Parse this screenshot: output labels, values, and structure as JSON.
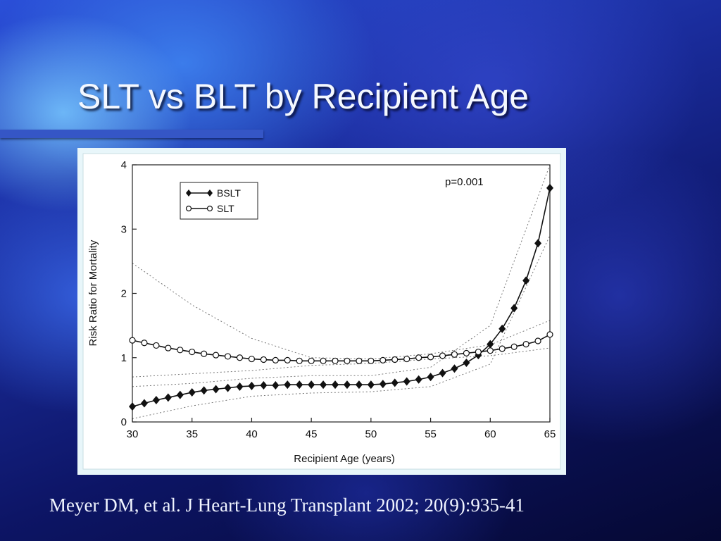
{
  "slide": {
    "title": "SLT vs BLT by Recipient Age",
    "citation": "Meyer DM, et al. J Heart-Lung Transplant 2002; 20(9):935-41"
  },
  "colors": {
    "title": "#f4f8ff",
    "rule": "#3556c6",
    "frame": "#e8f6fa"
  },
  "chart_data": {
    "type": "line",
    "title": "",
    "xlabel": "Recipient Age (years)",
    "ylabel": "Risk Ratio for Mortality",
    "xlim": [
      30,
      65
    ],
    "ylim": [
      0,
      4
    ],
    "xticks": [
      30,
      35,
      40,
      45,
      50,
      55,
      60,
      65
    ],
    "yticks": [
      0,
      1,
      2,
      3,
      4
    ],
    "annotation": "p=0.001",
    "legend": {
      "placement": "top-left"
    },
    "grid": false,
    "series": [
      {
        "name": "BSLT",
        "marker": "filled-diamond",
        "x": [
          30,
          31,
          32,
          33,
          34,
          35,
          36,
          37,
          38,
          39,
          40,
          41,
          42,
          43,
          44,
          45,
          46,
          47,
          48,
          49,
          50,
          51,
          52,
          53,
          54,
          55,
          56,
          57,
          58,
          59,
          60,
          61,
          62,
          63,
          64,
          65
        ],
        "values": [
          0.24,
          0.29,
          0.34,
          0.38,
          0.42,
          0.46,
          0.49,
          0.51,
          0.53,
          0.55,
          0.56,
          0.57,
          0.57,
          0.58,
          0.58,
          0.58,
          0.58,
          0.58,
          0.58,
          0.58,
          0.58,
          0.59,
          0.61,
          0.63,
          0.66,
          0.7,
          0.76,
          0.83,
          0.92,
          1.04,
          1.21,
          1.45,
          1.77,
          2.2,
          2.78,
          3.64
        ]
      },
      {
        "name": "SLT",
        "marker": "open-circle",
        "x": [
          30,
          31,
          32,
          33,
          34,
          35,
          36,
          37,
          38,
          39,
          40,
          41,
          42,
          43,
          44,
          45,
          46,
          47,
          48,
          49,
          50,
          51,
          52,
          53,
          54,
          55,
          56,
          57,
          58,
          59,
          60,
          61,
          62,
          63,
          64,
          65
        ],
        "values": [
          1.27,
          1.23,
          1.19,
          1.15,
          1.12,
          1.09,
          1.06,
          1.04,
          1.02,
          1.0,
          0.98,
          0.97,
          0.96,
          0.96,
          0.95,
          0.95,
          0.95,
          0.95,
          0.95,
          0.95,
          0.95,
          0.96,
          0.97,
          0.98,
          1.0,
          1.01,
          1.03,
          1.05,
          1.07,
          1.09,
          1.11,
          1.14,
          1.17,
          1.21,
          1.26,
          1.36
        ]
      }
    ],
    "confidence_bands": [
      {
        "series": "SLT",
        "bound": "upper",
        "x": [
          30,
          35,
          40,
          45,
          50,
          55,
          60,
          65
        ],
        "values": [
          2.47,
          1.82,
          1.3,
          1.0,
          0.98,
          1.06,
          1.2,
          1.58
        ]
      },
      {
        "series": "SLT",
        "bound": "lower",
        "x": [
          30,
          35,
          40,
          45,
          50,
          55,
          60,
          65
        ],
        "values": [
          0.7,
          0.75,
          0.8,
          0.88,
          0.91,
          0.98,
          1.03,
          1.15
        ]
      },
      {
        "series": "BSLT",
        "bound": "upper",
        "x": [
          30,
          35,
          40,
          45,
          50,
          55,
          60,
          65
        ],
        "values": [
          0.55,
          0.6,
          0.68,
          0.72,
          0.72,
          0.85,
          1.5,
          4.0
        ]
      },
      {
        "series": "BSLT",
        "bound": "lower",
        "x": [
          30,
          35,
          40,
          45,
          50,
          55,
          60,
          65
        ],
        "values": [
          0.05,
          0.25,
          0.4,
          0.45,
          0.47,
          0.55,
          0.9,
          2.9
        ]
      }
    ]
  }
}
